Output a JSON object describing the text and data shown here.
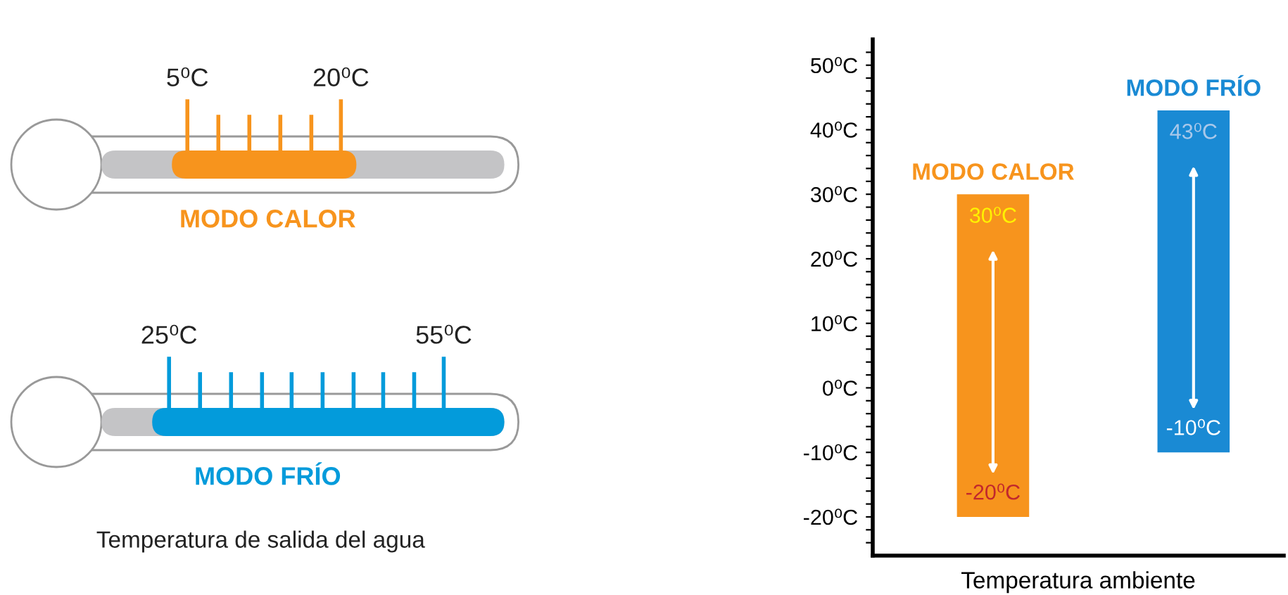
{
  "chart_data": [
    {
      "type": "other",
      "colors": [
        "#f7941d",
        "#039bdb"
      ],
      "annotations": [
        "5⁰C",
        "20⁰C",
        "MODO CALOR",
        "25⁰C",
        "55⁰C",
        "MODO FRÍO",
        "Temperatura de salida del agua"
      ]
    },
    {
      "type": "bar",
      "xlabel": "Temperatura ambiente",
      "categories": [
        "MODO CALOR",
        "MODO FRÍO"
      ],
      "base": [
        -20,
        -10
      ],
      "values": [
        50,
        53
      ],
      "colors": [
        "#f7941d",
        "#1a8ad4"
      ],
      "annotations": [
        "30⁰C",
        "-20⁰C",
        "43⁰C",
        "-10⁰C"
      ],
      "ylim": [
        -26,
        54
      ],
      "yticks": [
        {
          "value": -24,
          "label": null
        },
        {
          "value": -22,
          "label": null
        },
        {
          "value": -20,
          "label": "-20⁰C"
        },
        {
          "value": -18,
          "label": null
        },
        {
          "value": -16,
          "label": null
        },
        {
          "value": -14,
          "label": null
        },
        {
          "value": -12,
          "label": null
        },
        {
          "value": -10,
          "label": "-10⁰C"
        },
        {
          "value": -8,
          "label": null
        },
        {
          "value": -6,
          "label": null
        },
        {
          "value": -4,
          "label": null
        },
        {
          "value": -2,
          "label": null
        },
        {
          "value": 0,
          "label": "0⁰C"
        },
        {
          "value": 2,
          "label": null
        },
        {
          "value": 4,
          "label": null
        },
        {
          "value": 6,
          "label": null
        },
        {
          "value": 8,
          "label": null
        },
        {
          "value": 10,
          "label": "10⁰C"
        },
        {
          "value": 12,
          "label": null
        },
        {
          "value": 14,
          "label": null
        },
        {
          "value": 16,
          "label": null
        },
        {
          "value": 18,
          "label": null
        },
        {
          "value": 20,
          "label": "20⁰C"
        },
        {
          "value": 22,
          "label": null
        },
        {
          "value": 24,
          "label": null
        },
        {
          "value": 26,
          "label": null
        },
        {
          "value": 28,
          "label": null
        },
        {
          "value": 30,
          "label": "30⁰C"
        },
        {
          "value": 32,
          "label": null
        },
        {
          "value": 34,
          "label": null
        },
        {
          "value": 36,
          "label": null
        },
        {
          "value": 38,
          "label": null
        },
        {
          "value": 40,
          "label": "40⁰C"
        },
        {
          "value": 42,
          "label": null
        },
        {
          "value": 44,
          "label": null
        },
        {
          "value": 46,
          "label": null
        },
        {
          "value": 48,
          "label": null
        },
        {
          "value": 50,
          "label": "50⁰C"
        },
        {
          "value": 52,
          "label": null
        }
      ],
      "grid": false,
      "legend": false,
      "tick_labels": "y"
    }
  ]
}
